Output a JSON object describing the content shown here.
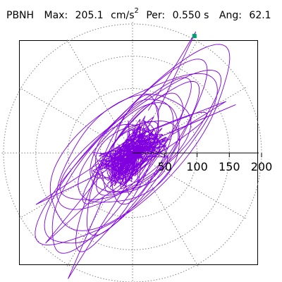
{
  "header": {
    "station": "PBNH",
    "max_label": "Max:",
    "max_value": "205.1",
    "max_unit": "cm/s",
    "max_unit_exp": "2",
    "period_label": "Per:",
    "period_value": "0.550 s",
    "angle_label": "Ang:",
    "angle_value": "62.1"
  },
  "chart_data": {
    "type": "scatter",
    "title": "",
    "xlabel": "",
    "ylabel": "",
    "polar": true,
    "grid": true,
    "grid_style": "dotted",
    "radial_tick_values": [
      50,
      100,
      150,
      200
    ],
    "radial_tick_labels": [
      "50",
      "100",
      "150",
      "200"
    ],
    "axis_range": [
      -205,
      205
    ],
    "trace_color": "#8000e0",
    "marker_color": "#00a070",
    "peak": {
      "magnitude": 205.1,
      "angle_deg": 62.1
    },
    "orbit": {
      "principal_angle_deg": 45,
      "major_extent": 190,
      "minor_extent": 65,
      "loops": [
        {
          "a": 205,
          "b": 60,
          "cx": 8,
          "cy": 5,
          "rot": 46
        },
        {
          "a": 180,
          "b": 55,
          "cx": -10,
          "cy": -8,
          "rot": 50
        },
        {
          "a": 160,
          "b": 70,
          "cx": -5,
          "cy": 3,
          "rot": 42
        },
        {
          "a": 140,
          "b": 40,
          "cx": 10,
          "cy": -5,
          "rot": 55
        },
        {
          "a": 120,
          "b": 60,
          "cx": -15,
          "cy": 5,
          "rot": 38
        },
        {
          "a": 110,
          "b": 30,
          "cx": 5,
          "cy": 10,
          "rot": 48
        },
        {
          "a": 95,
          "b": 55,
          "cx": 0,
          "cy": -5,
          "rot": 44
        },
        {
          "a": 80,
          "b": 30,
          "cx": -5,
          "cy": 0,
          "rot": 60
        },
        {
          "a": 70,
          "b": 45,
          "cx": 5,
          "cy": -3,
          "rot": 35
        },
        {
          "a": 55,
          "b": 25,
          "cx": -3,
          "cy": 5,
          "rot": 50
        },
        {
          "a": 45,
          "b": 30,
          "cx": 0,
          "cy": 0,
          "rot": 40
        },
        {
          "a": 35,
          "b": 20,
          "cx": 3,
          "cy": -2,
          "rot": 55
        },
        {
          "a": 130,
          "b": 35,
          "cx": -20,
          "cy": -30,
          "rot": 65
        },
        {
          "a": 150,
          "b": 50,
          "cx": 15,
          "cy": 20,
          "rot": 38
        },
        {
          "a": 100,
          "b": 20,
          "cx": 20,
          "cy": 10,
          "rot": 28
        },
        {
          "a": 165,
          "b": 45,
          "cx": -25,
          "cy": -20,
          "rot": 52
        },
        {
          "a": 60,
          "b": 50,
          "cx": -8,
          "cy": -10,
          "rot": 20
        },
        {
          "a": 85,
          "b": 40,
          "cx": 12,
          "cy": 8,
          "rot": 70
        }
      ],
      "spikes": [
        {
          "x": 98,
          "y": 188
        },
        {
          "x": 145,
          "y": 80
        },
        {
          "x": -100,
          "y": -195
        },
        {
          "x": -135,
          "y": -140
        },
        {
          "x": 160,
          "y": 75
        },
        {
          "x": -150,
          "y": -80
        }
      ]
    }
  }
}
